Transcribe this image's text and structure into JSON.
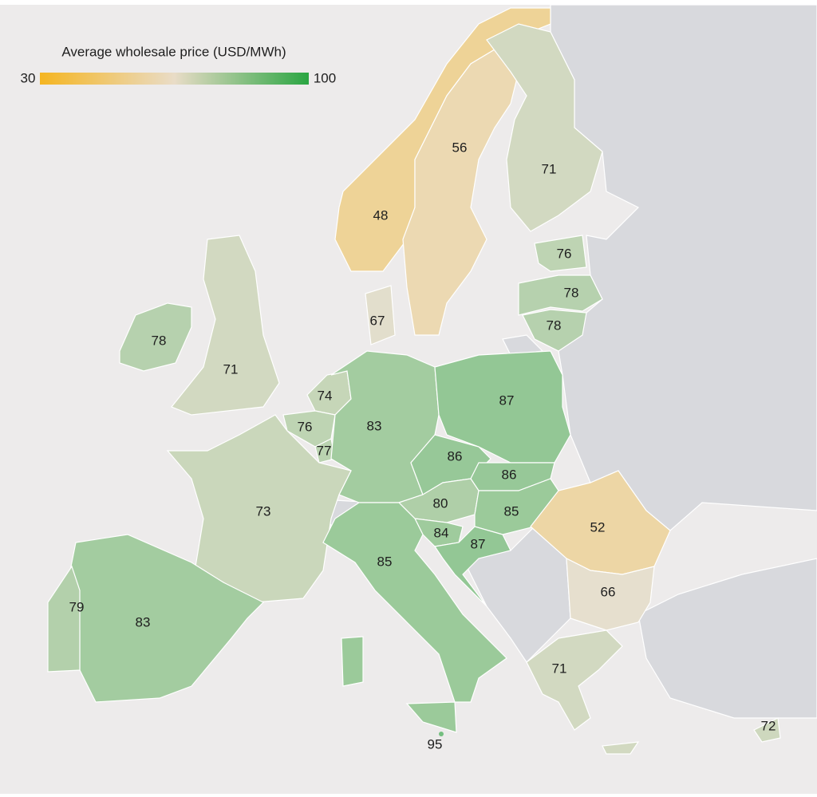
{
  "legend": {
    "title": "Average wholesale price (USD/MWh)",
    "min": 30,
    "max": 100,
    "colors": [
      "#f5b521",
      "#e9dcc7",
      "#2aa542"
    ]
  },
  "regions": [
    {
      "value": 48
    },
    {
      "value": 56
    },
    {
      "value": 71
    },
    {
      "value": 76
    },
    {
      "value": 78
    },
    {
      "value": 78
    },
    {
      "value": 67
    },
    {
      "value": 78
    },
    {
      "value": 71
    },
    {
      "value": 74
    },
    {
      "value": 76
    },
    {
      "value": 77
    },
    {
      "value": 83
    },
    {
      "value": 87
    },
    {
      "value": 86
    },
    {
      "value": 86
    },
    {
      "value": 80
    },
    {
      "value": 85
    },
    {
      "value": 84
    },
    {
      "value": 87
    },
    {
      "value": 52
    },
    {
      "value": 66
    },
    {
      "value": 73
    },
    {
      "value": 85
    },
    {
      "value": 83
    },
    {
      "value": 79
    },
    {
      "value": 71
    },
    {
      "value": 72
    },
    {
      "value": 95
    }
  ]
}
